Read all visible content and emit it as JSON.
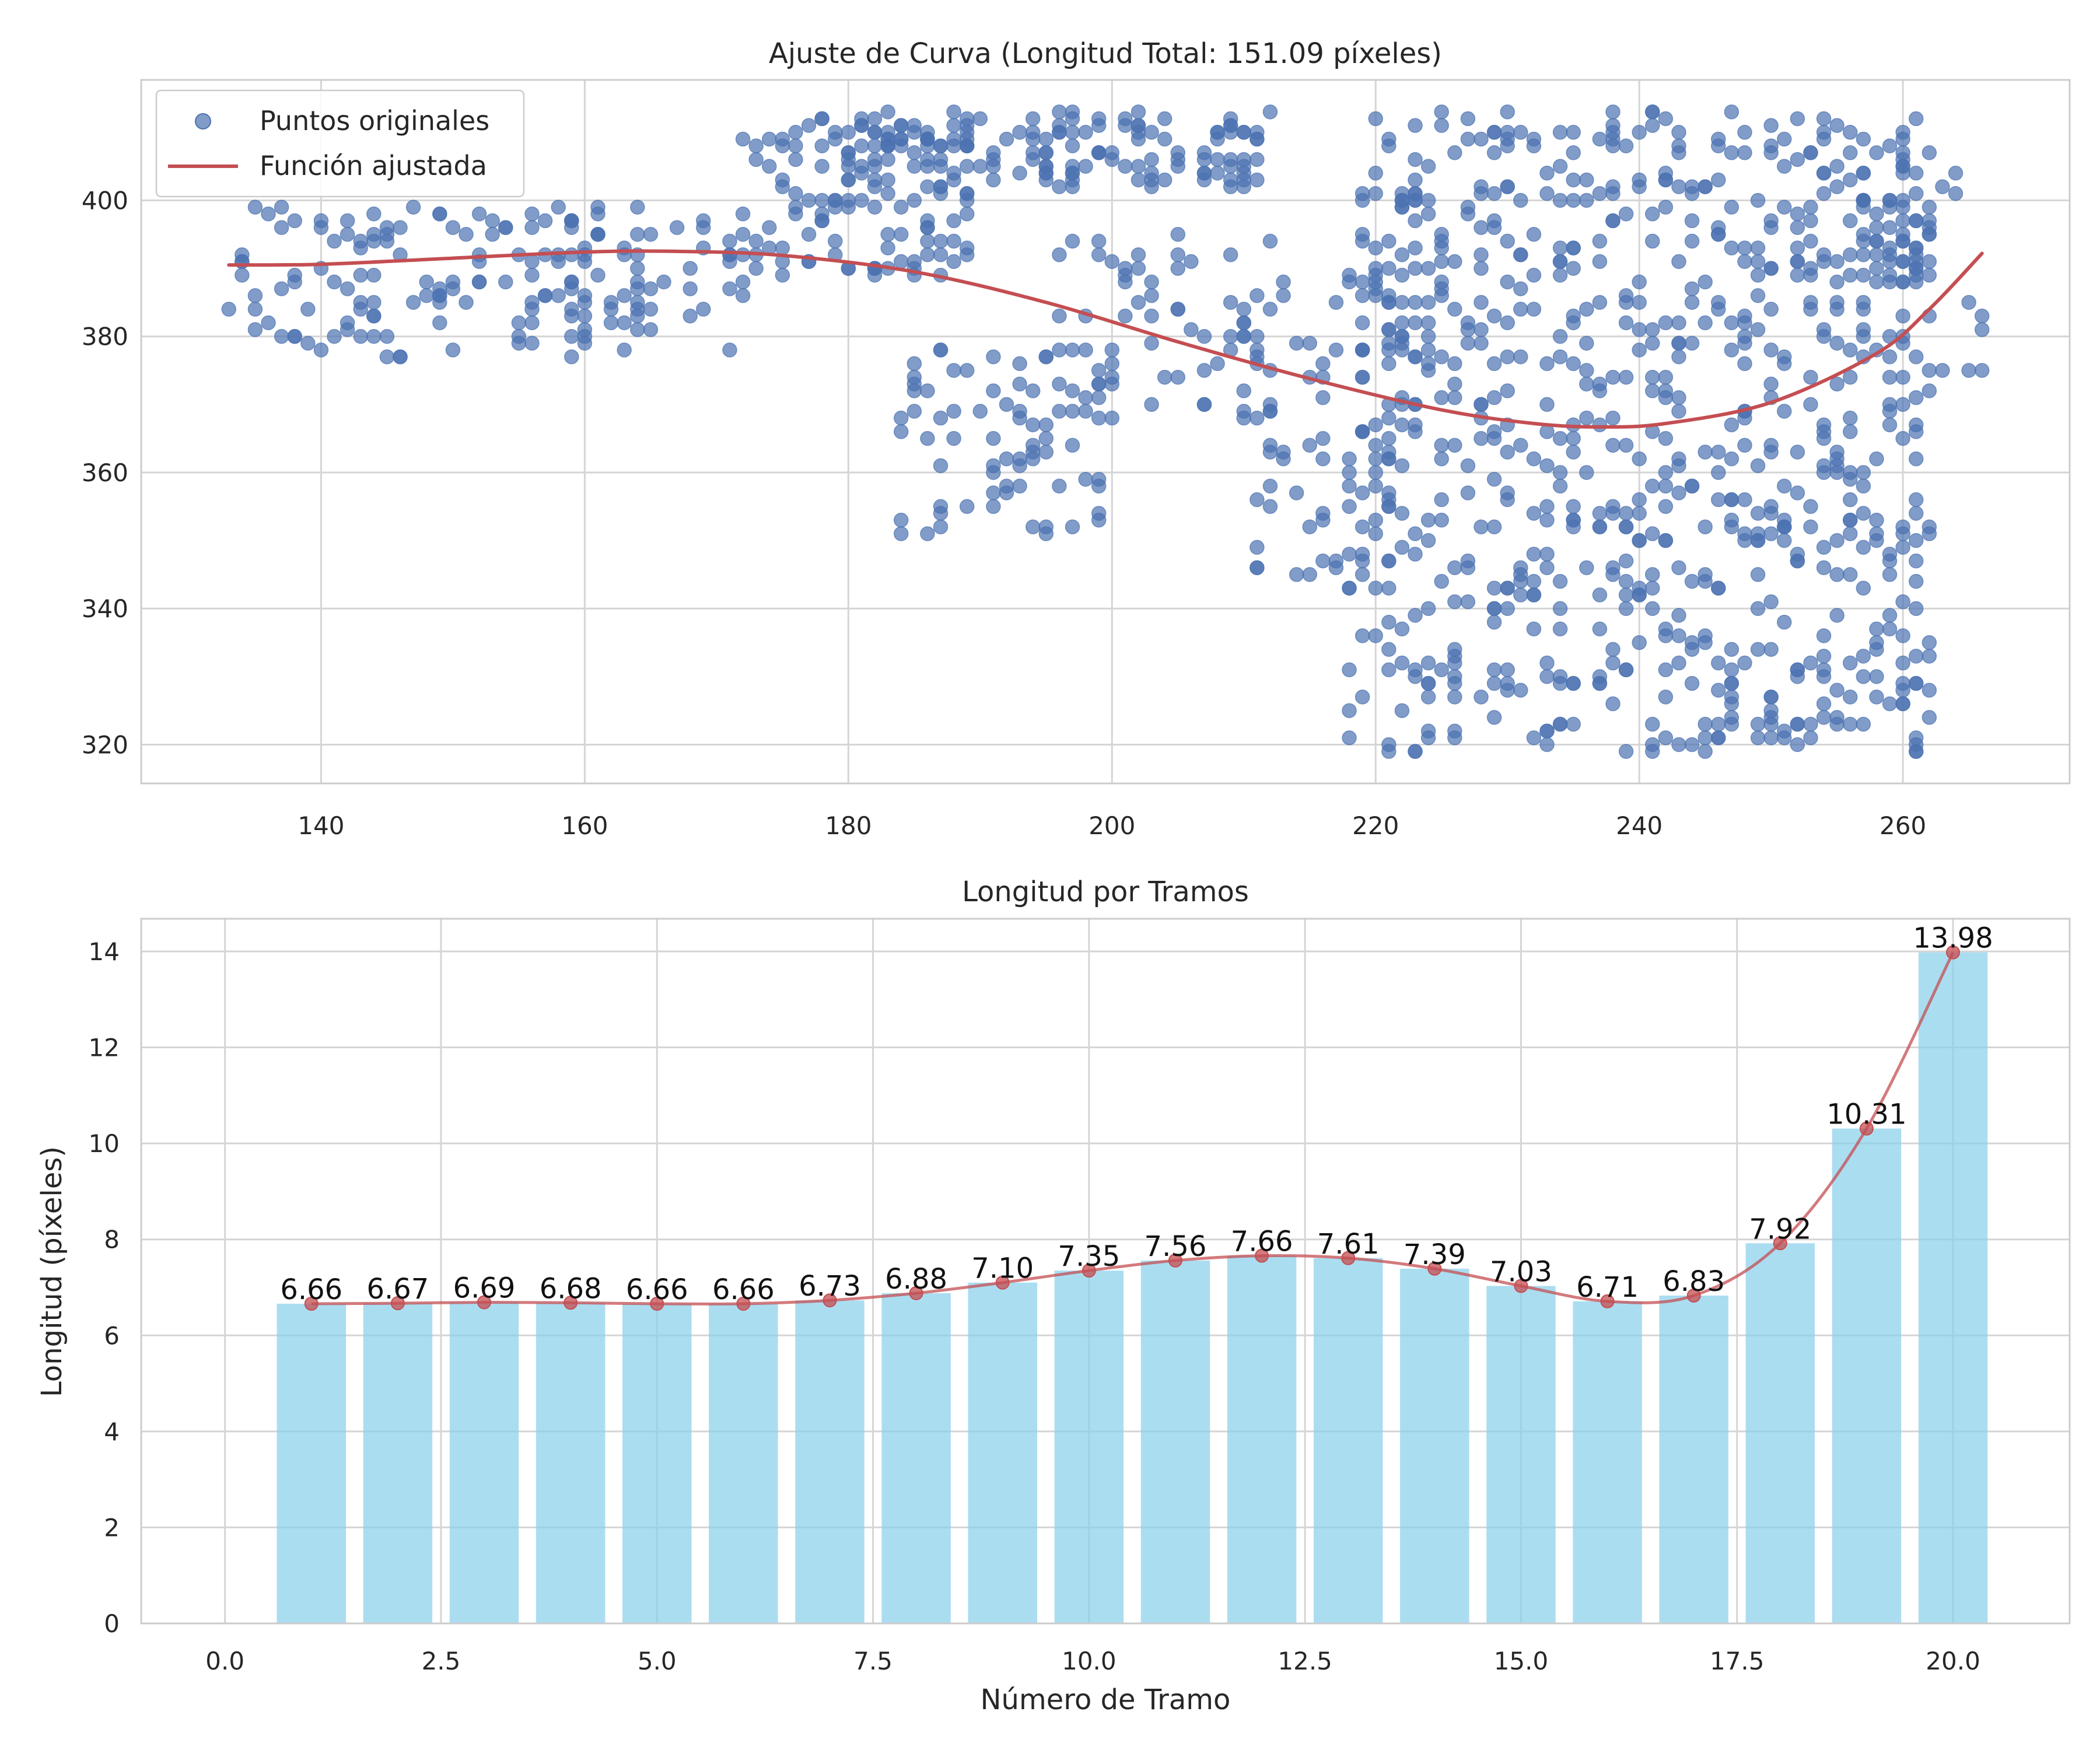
{
  "chart_data": [
    {
      "type": "scatter",
      "title": "Ajuste de Curva (Longitud Total: 151.09 píxeles)",
      "xlabel": "",
      "ylabel": "",
      "xlim": [
        126.35,
        272.65
      ],
      "ylim": [
        314.3,
        417.7
      ],
      "xticks": [
        "140",
        "160",
        "180",
        "200",
        "220",
        "240",
        "260"
      ],
      "yticks": [
        "320",
        "340",
        "360",
        "380",
        "400"
      ],
      "grid": true,
      "legend": {
        "placement": "top-left",
        "entries": [
          "Puntos originales",
          "Función ajustada"
        ]
      },
      "colors": {
        "points": "#4c72b0",
        "curve": "#c44e52"
      },
      "series": [
        {
          "name": "Puntos originales",
          "kind": "points",
          "clusters": [
            {
              "x": [
                133,
                172
              ],
              "y": [
                377,
                399
              ],
              "n": 170
            },
            {
              "x": [
                172,
                190
              ],
              "y": [
                389,
                413
              ],
              "n": 110
            },
            {
              "x": [
                180,
                212
              ],
              "y": [
                402,
                413
              ],
              "n": 140
            },
            {
              "x": [
                184,
                200
              ],
              "y": [
                350,
                379
              ],
              "n": 75
            },
            {
              "x": [
                196,
                212
              ],
              "y": [
                368,
                396
              ],
              "n": 55
            },
            {
              "x": [
                210,
                222
              ],
              "y": [
                343,
                390
              ],
              "n": 70
            },
            {
              "x": [
                218,
                262
              ],
              "y": [
                319,
                413
              ],
              "n": 780
            },
            {
              "x": [
                256,
                266
              ],
              "y": [
                375,
                408
              ],
              "n": 45
            }
          ]
        },
        {
          "name": "Función ajustada",
          "kind": "line",
          "x": [
            133,
            140,
            150,
            160,
            167,
            175,
            185,
            195,
            205,
            215,
            225,
            232,
            237,
            242,
            250,
            258,
            262,
            266
          ],
          "y": [
            390.5,
            390.6,
            391.5,
            392.4,
            392.5,
            391.9,
            389.5,
            385.0,
            379.2,
            373.8,
            369.2,
            367.2,
            366.7,
            367.2,
            370.3,
            377.5,
            384.0,
            392.2
          ]
        }
      ]
    },
    {
      "type": "bar",
      "title": "Longitud por Tramos",
      "xlabel": "Número de Tramo",
      "ylabel": "Longitud (píxeles)",
      "xlim": [
        -0.97,
        21.35
      ],
      "ylim": [
        0,
        14.68
      ],
      "xticks": [
        "0.0",
        "2.5",
        "5.0",
        "7.5",
        "10.0",
        "12.5",
        "15.0",
        "17.5",
        "20.0"
      ],
      "yticks": [
        "0",
        "2",
        "4",
        "6",
        "8",
        "10",
        "12",
        "14"
      ],
      "grid": true,
      "colors": {
        "bars": "#87ceeb",
        "line": "#c44e52"
      },
      "categories": [
        1,
        2,
        3,
        4,
        5,
        6,
        7,
        8,
        9,
        10,
        11,
        12,
        13,
        14,
        15,
        16,
        17,
        18,
        19,
        20
      ],
      "values": [
        6.66,
        6.67,
        6.69,
        6.68,
        6.66,
        6.66,
        6.73,
        6.88,
        7.1,
        7.35,
        7.56,
        7.66,
        7.61,
        7.39,
        7.03,
        6.71,
        6.83,
        7.92,
        10.31,
        13.98
      ],
      "labels": [
        "6.66",
        "6.67",
        "6.69",
        "6.68",
        "6.66",
        "6.66",
        "6.73",
        "6.88",
        "7.10",
        "7.35",
        "7.56",
        "7.66",
        "7.61",
        "7.39",
        "7.03",
        "6.71",
        "6.83",
        "7.92",
        "10.31",
        "13.98"
      ]
    }
  ]
}
